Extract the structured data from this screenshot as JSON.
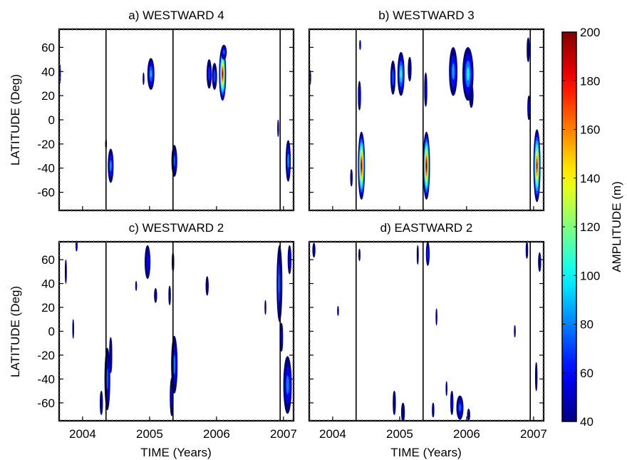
{
  "chart_data": {
    "type": "heatmap",
    "colorbar": {
      "label": "AMPLITUDE (m)",
      "min": 40,
      "max": 200,
      "ticks": [
        40,
        60,
        80,
        100,
        120,
        140,
        160,
        180,
        200
      ],
      "colormap": "jet",
      "colors": [
        "#00008f",
        "#0000ff",
        "#0080ff",
        "#00ffff",
        "#80ff80",
        "#ffff00",
        "#ff8000",
        "#ff0000",
        "#800000"
      ]
    },
    "ylabel": "LATITUDE (Deg)",
    "xlabel": "TIME (Years)",
    "ylim": [
      -75,
      75
    ],
    "yticks": [
      -60,
      -40,
      -20,
      0,
      20,
      40,
      60
    ],
    "xlim": [
      2003.65,
      2007.15
    ],
    "xticks": [
      2004,
      2005,
      2006,
      2007
    ],
    "xtick_labels": [
      "2004",
      "2005",
      "2006",
      "2007"
    ],
    "vertical_lines": [
      2004.35,
      2005.35,
      2006.95
    ],
    "panels": [
      {
        "title": "a) WESTWARD 4",
        "blobs": [
          {
            "t": 2003.66,
            "lat": 38,
            "dt": 0.012,
            "dlat": 8,
            "amp": 55
          },
          {
            "t": 2004.42,
            "lat": -38,
            "dt": 0.04,
            "dlat": 14,
            "amp": 85
          },
          {
            "t": 2004.35,
            "lat": -20,
            "dt": 0.01,
            "dlat": 4,
            "amp": 45
          },
          {
            "t": 2005.02,
            "lat": 38,
            "dt": 0.05,
            "dlat": 13,
            "amp": 90
          },
          {
            "t": 2004.91,
            "lat": 34,
            "dt": 0.01,
            "dlat": 5,
            "amp": 45
          },
          {
            "t": 2005.37,
            "lat": -34,
            "dt": 0.04,
            "dlat": 13,
            "amp": 75
          },
          {
            "t": 2005.89,
            "lat": 38,
            "dt": 0.035,
            "dlat": 12,
            "amp": 65
          },
          {
            "t": 2005.97,
            "lat": 36,
            "dt": 0.035,
            "dlat": 11,
            "amp": 70
          },
          {
            "t": 2006.09,
            "lat": 38,
            "dt": 0.05,
            "dlat": 22,
            "amp": 195
          },
          {
            "t": 2006.11,
            "lat": 56,
            "dt": 0.04,
            "dlat": 6,
            "amp": 75
          },
          {
            "t": 2006.92,
            "lat": -7,
            "dt": 0.01,
            "dlat": 7,
            "amp": 50
          },
          {
            "t": 2007.07,
            "lat": -34,
            "dt": 0.035,
            "dlat": 17,
            "amp": 85
          }
        ]
      },
      {
        "title": "b) WESTWARD 3",
        "blobs": [
          {
            "t": 2003.66,
            "lat": 35,
            "dt": 0.015,
            "dlat": 6,
            "amp": 55
          },
          {
            "t": 2004.43,
            "lat": -38,
            "dt": 0.05,
            "dlat": 28,
            "amp": 200
          },
          {
            "t": 2004.4,
            "lat": 20,
            "dt": 0.02,
            "dlat": 12,
            "amp": 60
          },
          {
            "t": 2004.41,
            "lat": 62,
            "dt": 0.01,
            "dlat": 4,
            "amp": 48
          },
          {
            "t": 2004.28,
            "lat": -48,
            "dt": 0.015,
            "dlat": 7,
            "amp": 50
          },
          {
            "t": 2004.9,
            "lat": 35,
            "dt": 0.035,
            "dlat": 14,
            "amp": 70
          },
          {
            "t": 2005.02,
            "lat": 38,
            "dt": 0.05,
            "dlat": 18,
            "amp": 110
          },
          {
            "t": 2005.15,
            "lat": 42,
            "dt": 0.025,
            "dlat": 10,
            "amp": 55
          },
          {
            "t": 2005.4,
            "lat": -38,
            "dt": 0.05,
            "dlat": 28,
            "amp": 200
          },
          {
            "t": 2005.39,
            "lat": 25,
            "dt": 0.02,
            "dlat": 14,
            "amp": 60
          },
          {
            "t": 2005.8,
            "lat": 40,
            "dt": 0.06,
            "dlat": 20,
            "amp": 85
          },
          {
            "t": 2006.02,
            "lat": 38,
            "dt": 0.08,
            "dlat": 22,
            "amp": 100
          },
          {
            "t": 2006.07,
            "lat": 20,
            "dt": 0.03,
            "dlat": 10,
            "amp": 55
          },
          {
            "t": 2006.93,
            "lat": 10,
            "dt": 0.02,
            "dlat": 10,
            "amp": 60
          },
          {
            "t": 2007.05,
            "lat": -38,
            "dt": 0.05,
            "dlat": 30,
            "amp": 190
          },
          {
            "t": 2006.92,
            "lat": 58,
            "dt": 0.02,
            "dlat": 10,
            "amp": 55
          }
        ]
      },
      {
        "title": "c) WESTWARD 2",
        "blobs": [
          {
            "t": 2003.75,
            "lat": 50,
            "dt": 0.012,
            "dlat": 10,
            "amp": 50
          },
          {
            "t": 2003.86,
            "lat": 2,
            "dt": 0.01,
            "dlat": 8,
            "amp": 48
          },
          {
            "t": 2003.91,
            "lat": 72,
            "dt": 0.012,
            "dlat": 5,
            "amp": 50
          },
          {
            "t": 2004.37,
            "lat": -40,
            "dt": 0.04,
            "dlat": 26,
            "amp": 75
          },
          {
            "t": 2004.42,
            "lat": -20,
            "dt": 0.02,
            "dlat": 15,
            "amp": 55
          },
          {
            "t": 2004.28,
            "lat": -60,
            "dt": 0.02,
            "dlat": 10,
            "amp": 55
          },
          {
            "t": 2004.97,
            "lat": 58,
            "dt": 0.04,
            "dlat": 14,
            "amp": 60
          },
          {
            "t": 2005.09,
            "lat": 30,
            "dt": 0.02,
            "dlat": 6,
            "amp": 45
          },
          {
            "t": 2004.8,
            "lat": 38,
            "dt": 0.01,
            "dlat": 4,
            "amp": 45
          },
          {
            "t": 2005.37,
            "lat": -28,
            "dt": 0.045,
            "dlat": 24,
            "amp": 80
          },
          {
            "t": 2005.33,
            "lat": -55,
            "dt": 0.025,
            "dlat": 16,
            "amp": 60
          },
          {
            "t": 2005.3,
            "lat": 30,
            "dt": 0.015,
            "dlat": 8,
            "amp": 50
          },
          {
            "t": 2005.35,
            "lat": 58,
            "dt": 0.015,
            "dlat": 8,
            "amp": 50
          },
          {
            "t": 2005.86,
            "lat": 38,
            "dt": 0.02,
            "dlat": 8,
            "amp": 50
          },
          {
            "t": 2006.73,
            "lat": 20,
            "dt": 0.01,
            "dlat": 6,
            "amp": 45
          },
          {
            "t": 2006.94,
            "lat": 40,
            "dt": 0.04,
            "dlat": 32,
            "amp": 90
          },
          {
            "t": 2006.97,
            "lat": -5,
            "dt": 0.02,
            "dlat": 12,
            "amp": 60
          },
          {
            "t": 2007.06,
            "lat": -45,
            "dt": 0.06,
            "dlat": 24,
            "amp": 80
          },
          {
            "t": 2007.09,
            "lat": 60,
            "dt": 0.025,
            "dlat": 12,
            "amp": 60
          }
        ]
      },
      {
        "title": "d) EASTWARD 2",
        "blobs": [
          {
            "t": 2003.72,
            "lat": 68,
            "dt": 0.02,
            "dlat": 6,
            "amp": 50
          },
          {
            "t": 2004.4,
            "lat": 64,
            "dt": 0.012,
            "dlat": 5,
            "amp": 48
          },
          {
            "t": 2004.08,
            "lat": 17,
            "dt": 0.01,
            "dlat": 4,
            "amp": 45
          },
          {
            "t": 2004.92,
            "lat": -60,
            "dt": 0.02,
            "dlat": 10,
            "amp": 55
          },
          {
            "t": 2005.05,
            "lat": -68,
            "dt": 0.025,
            "dlat": 8,
            "amp": 55
          },
          {
            "t": 2005.27,
            "lat": 64,
            "dt": 0.012,
            "dlat": 8,
            "amp": 48
          },
          {
            "t": 2005.42,
            "lat": 65,
            "dt": 0.025,
            "dlat": 10,
            "amp": 65
          },
          {
            "t": 2005.55,
            "lat": 12,
            "dt": 0.01,
            "dlat": 7,
            "amp": 45
          },
          {
            "t": 2005.5,
            "lat": -66,
            "dt": 0.015,
            "dlat": 6,
            "amp": 50
          },
          {
            "t": 2005.7,
            "lat": -48,
            "dt": 0.01,
            "dlat": 6,
            "amp": 45
          },
          {
            "t": 2005.78,
            "lat": -60,
            "dt": 0.02,
            "dlat": 10,
            "amp": 60
          },
          {
            "t": 2005.9,
            "lat": -64,
            "dt": 0.05,
            "dlat": 10,
            "amp": 75
          },
          {
            "t": 2006.03,
            "lat": -70,
            "dt": 0.02,
            "dlat": 5,
            "amp": 55
          },
          {
            "t": 2006.72,
            "lat": 0,
            "dt": 0.01,
            "dlat": 5,
            "amp": 45
          },
          {
            "t": 2006.9,
            "lat": 68,
            "dt": 0.015,
            "dlat": 7,
            "amp": 50
          },
          {
            "t": 2007.04,
            "lat": -38,
            "dt": 0.015,
            "dlat": 12,
            "amp": 55
          },
          {
            "t": 2007.09,
            "lat": 58,
            "dt": 0.02,
            "dlat": 8,
            "amp": 55
          }
        ]
      }
    ]
  }
}
